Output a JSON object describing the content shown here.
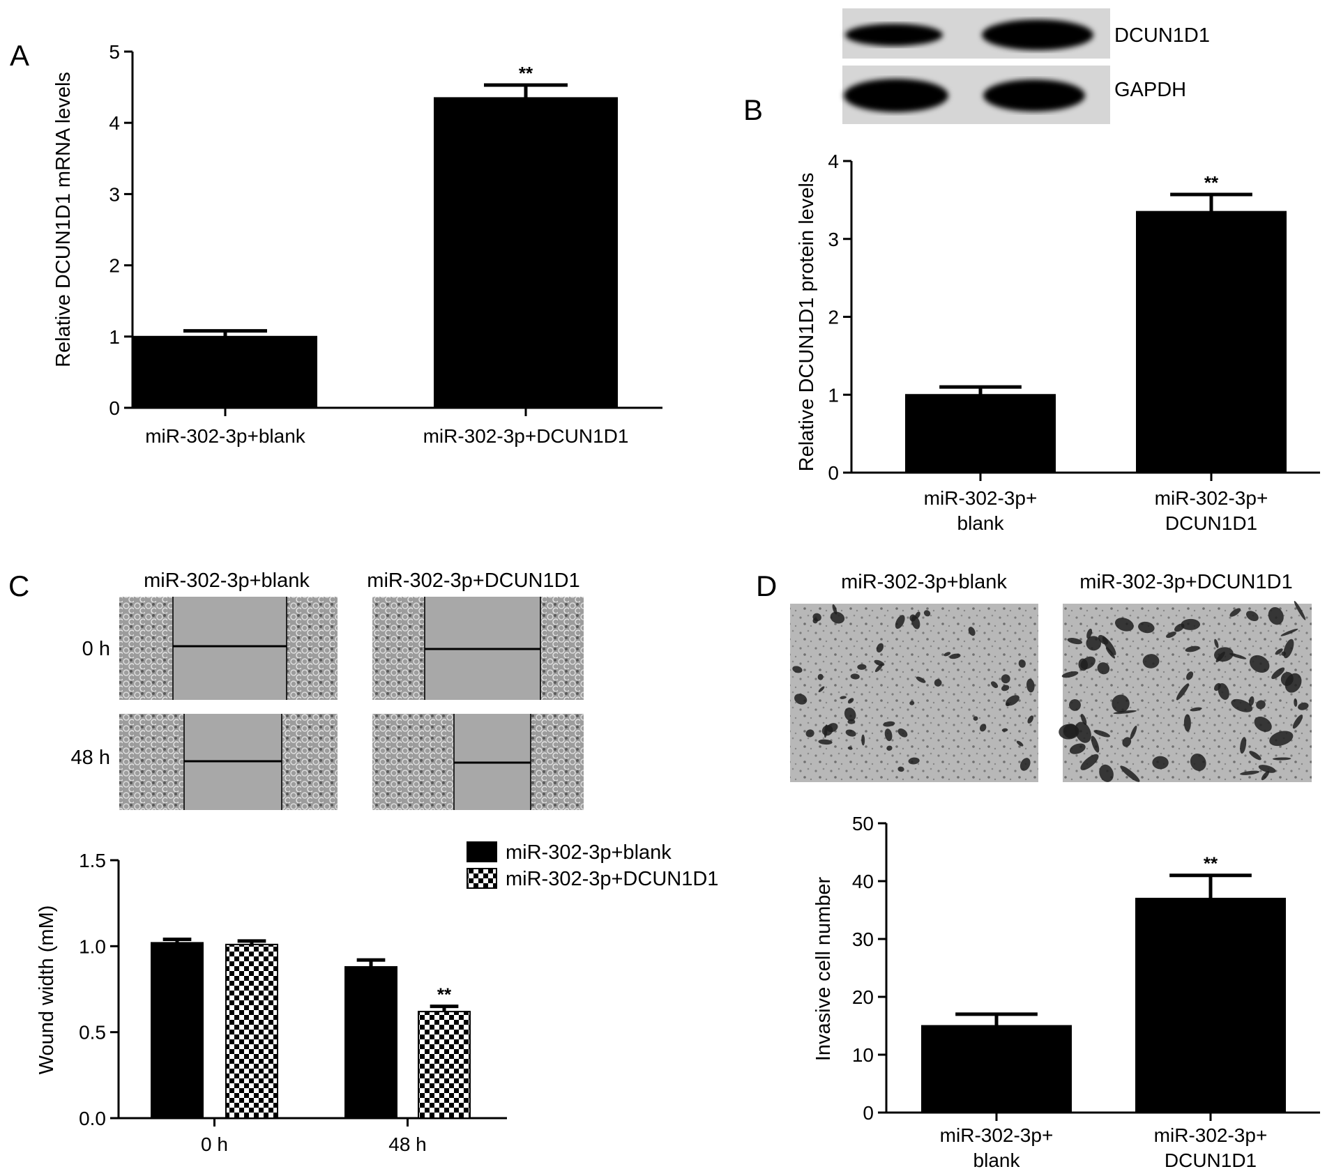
{
  "panels": {
    "A": {
      "letter": "A"
    },
    "B": {
      "letter": "B"
    },
    "C": {
      "letter": "C"
    },
    "D": {
      "letter": "D"
    }
  },
  "western_blot": {
    "bands": [
      "DCUN1D1",
      "GAPDH"
    ]
  },
  "wound_images": {
    "columns": [
      "miR-302-3p+blank",
      "miR-302-3p+DCUN1D1"
    ],
    "rows": [
      "0 h",
      "48 h"
    ]
  },
  "invasion_images": {
    "columns": [
      "miR-302-3p+blank",
      "miR-302-3p+DCUN1D1"
    ]
  },
  "colors": {
    "bar": "#000000",
    "axis": "#000000",
    "background": "#ffffff"
  },
  "chart_data": [
    {
      "id": "A",
      "type": "bar",
      "categories": [
        [
          "miR-302-3p+blank"
        ],
        [
          "miR-302-3p+DCUN1D1"
        ]
      ],
      "values": [
        1.0,
        4.35
      ],
      "errors": [
        0.08,
        0.18
      ],
      "significance": [
        "",
        "**"
      ],
      "ylabel": "Relative DCUN1D1 mRNA levels",
      "ylim": [
        0,
        5
      ],
      "yticks": [
        0,
        1,
        2,
        3,
        4,
        5
      ]
    },
    {
      "id": "B",
      "type": "bar",
      "categories": [
        [
          "miR-302-3p+",
          "blank"
        ],
        [
          "miR-302-3p+",
          "DCUN1D1"
        ]
      ],
      "values": [
        1.0,
        3.35
      ],
      "errors": [
        0.1,
        0.22
      ],
      "significance": [
        "",
        "**"
      ],
      "ylabel": "Relative DCUN1D1 protein levels",
      "ylim": [
        0,
        4
      ],
      "yticks": [
        0,
        1,
        2,
        3,
        4
      ]
    },
    {
      "id": "C",
      "type": "bar",
      "categories": [
        "0 h",
        "48 h"
      ],
      "series": [
        {
          "name": "miR-302-3p+blank",
          "pattern": "solid",
          "values": [
            1.02,
            0.88
          ],
          "errors": [
            0.02,
            0.04
          ],
          "significance": [
            "",
            ""
          ]
        },
        {
          "name": "miR-302-3p+DCUN1D1",
          "pattern": "checker",
          "values": [
            1.01,
            0.62
          ],
          "errors": [
            0.02,
            0.03
          ],
          "significance": [
            "",
            "**"
          ]
        }
      ],
      "ylabel": "Wound width (mM)",
      "ylim": [
        0,
        1.5
      ],
      "yticks": [
        "0.0",
        "0.5",
        "1.0",
        "1.5"
      ],
      "legend": "top-right"
    },
    {
      "id": "D",
      "type": "bar",
      "categories": [
        [
          "miR-302-3p+",
          "blank"
        ],
        [
          "miR-302-3p+",
          "DCUN1D1"
        ]
      ],
      "values": [
        15,
        37
      ],
      "errors": [
        2,
        4
      ],
      "significance": [
        "",
        "**"
      ],
      "ylabel": "Invasive cell number",
      "ylim": [
        0,
        50
      ],
      "yticks": [
        0,
        10,
        20,
        30,
        40,
        50
      ]
    }
  ]
}
